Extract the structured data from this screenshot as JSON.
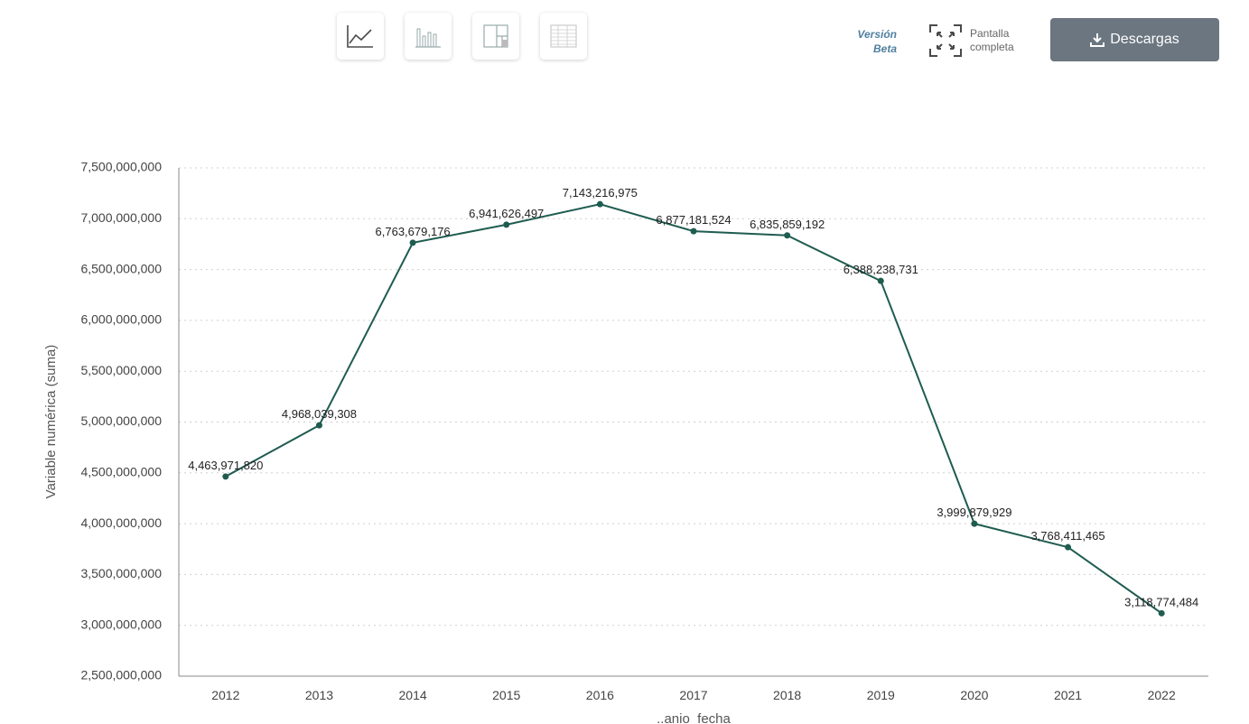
{
  "toolbar": {
    "icons": [
      "line-chart-icon",
      "bar-chart-icon",
      "treemap-icon",
      "table-icon"
    ],
    "version_line1": "Versión",
    "version_line2": "Beta",
    "fullscreen_line1": "Pantalla",
    "fullscreen_line2": "completa",
    "download_label": "Descargas"
  },
  "colors": {
    "line": "#1f5c50",
    "grid": "#d0d0d0",
    "axis": "#888888",
    "button": "#6b7680"
  },
  "chart_data": {
    "type": "line",
    "x": [
      "2012",
      "2013",
      "2014",
      "2015",
      "2016",
      "2017",
      "2018",
      "2019",
      "2020",
      "2021",
      "2022"
    ],
    "series": [
      {
        "values": [
          4463971820,
          4968039308,
          6763679176,
          6941626497,
          7143216975,
          6877181524,
          6835859192,
          6388238731,
          3999879929,
          3768411465,
          3118774484
        ]
      }
    ],
    "data_labels": [
      "4,463,971,820",
      "4,968,039,308",
      "6,763,679,176",
      "6,941,626,497",
      "7,143,216,975",
      "6,877,181,524",
      "6,835,859,192",
      "6,388,238,731",
      "3,999,879,929",
      "3,768,411,465",
      "3,118,774,484"
    ],
    "y_ticks": [
      "2,500,000,000",
      "3,000,000,000",
      "3,500,000,000",
      "4,000,000,000",
      "4,500,000,000",
      "5,000,000,000",
      "5,500,000,000",
      "6,000,000,000",
      "6,500,000,000",
      "7,000,000,000",
      "7,500,000,000"
    ],
    "ylim": [
      2500000000,
      7500000000
    ],
    "xlabel": "..anio_fecha",
    "ylabel": "Variable numérica (suma)",
    "grid": true
  }
}
